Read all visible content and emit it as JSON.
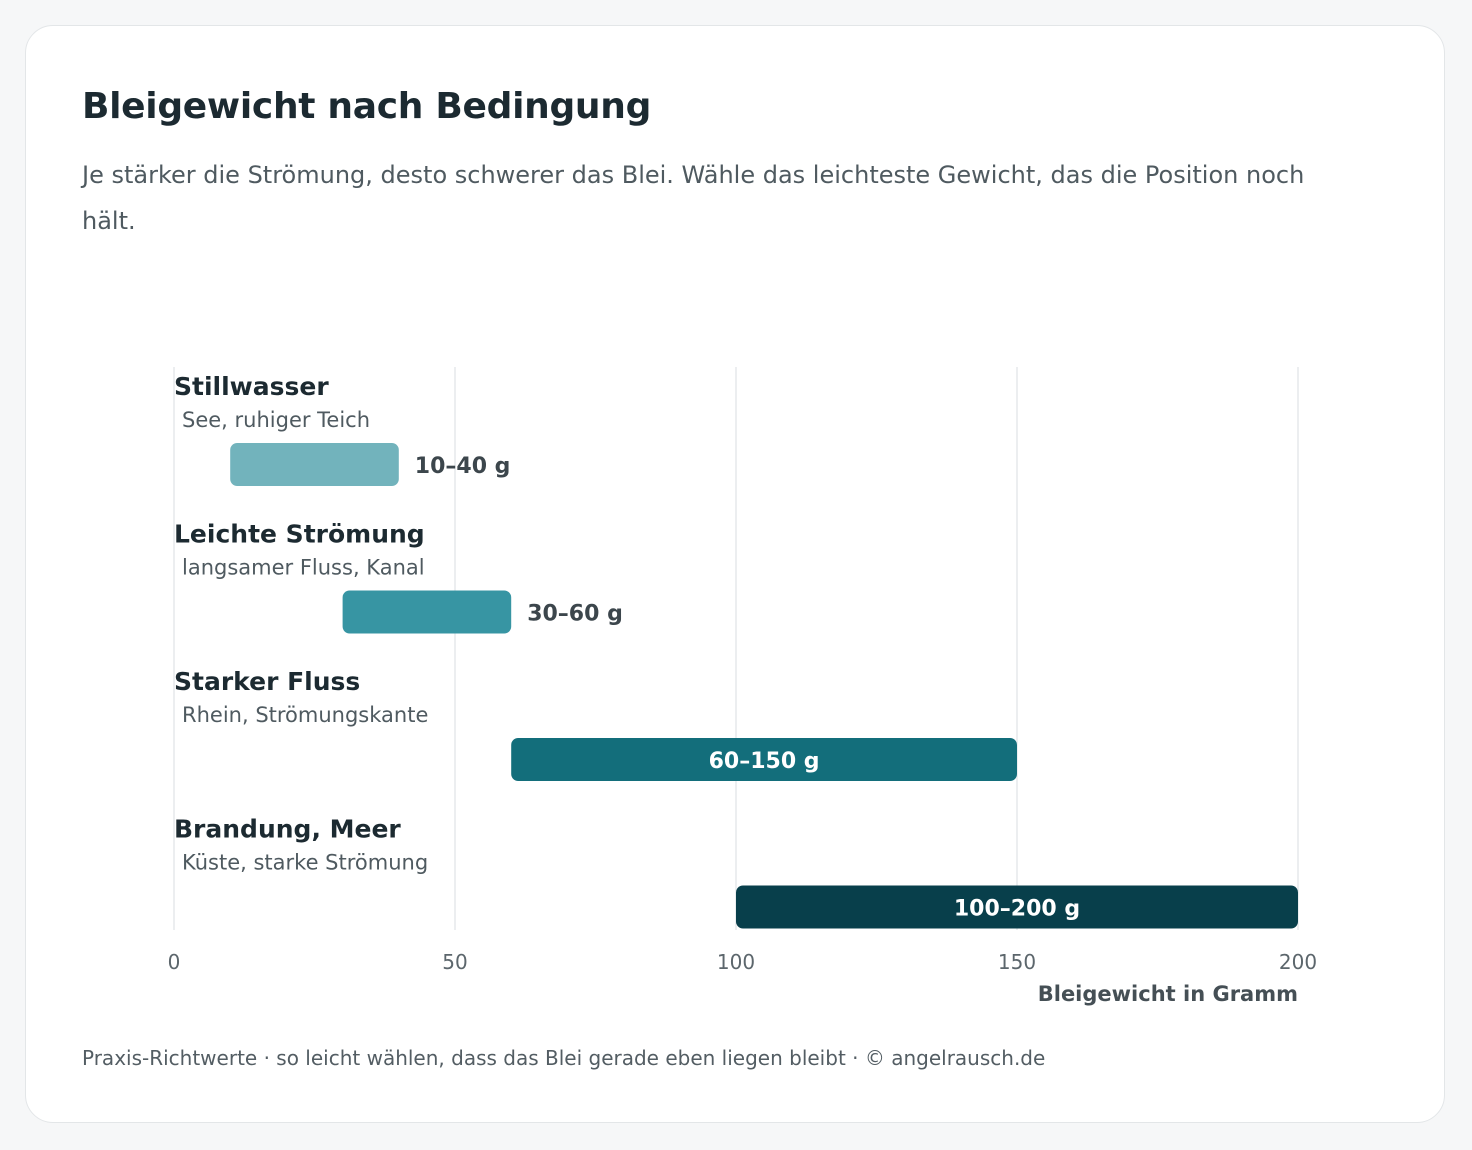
{
  "header": {
    "title": "Bleigewicht nach Bedingung",
    "subtitle": "Je stärker die Strömung, desto schwerer das Blei. Wähle das leichteste Gewicht, das die Position noch hält."
  },
  "footer": {
    "text": "Praxis-Richtwerte · so leicht wählen, dass das Blei gerade eben liegen bleibt · © angelrausch.de"
  },
  "chart_data": {
    "type": "bar",
    "orientation": "horizontal-range",
    "title": "Bleigewicht nach Bedingung",
    "xlabel": "Bleigewicht in Gramm",
    "xlim": [
      0,
      200
    ],
    "xticks": [
      0,
      50,
      100,
      150,
      200
    ],
    "grid": true,
    "categories": [
      {
        "label": "Stillwasser",
        "sublabel": "See, ruhiger Teich",
        "min": 10,
        "max": 40,
        "value_label": "10–40 g",
        "color": "#72b3bc",
        "label_position": "outside"
      },
      {
        "label": "Leichte Strömung",
        "sublabel": "langsamer Fluss, Kanal",
        "min": 30,
        "max": 60,
        "value_label": "30–60 g",
        "color": "#3795a3",
        "label_position": "outside"
      },
      {
        "label": "Starker Fluss",
        "sublabel": "Rhein, Strömungskante",
        "min": 60,
        "max": 150,
        "value_label": "60–150 g",
        "color": "#136e7b",
        "label_position": "inside"
      },
      {
        "label": "Brandung, Meer",
        "sublabel": "Küste, starke Strömung",
        "min": 100,
        "max": 200,
        "value_label": "100–200 g",
        "color": "#083f4b",
        "label_position": "inside"
      }
    ],
    "colors": {
      "grid": "#e6e9eb",
      "axis": "#e6e9eb"
    }
  }
}
